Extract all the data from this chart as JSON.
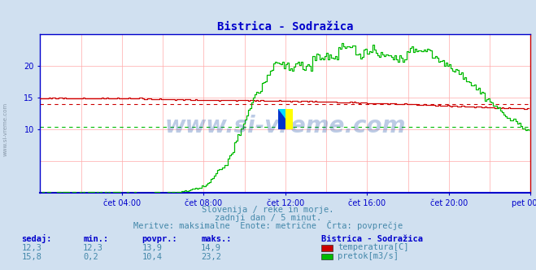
{
  "title": "Bistrica - Sodražica",
  "bg_color": "#d0e0f0",
  "plot_bg_color": "#ffffff",
  "grid_color": "#ffaaaa",
  "x_labels": [
    "čet 04:00",
    "čet 08:00",
    "čet 12:00",
    "čet 16:00",
    "čet 20:00",
    "pet 00:00"
  ],
  "x_ticks": [
    48,
    96,
    144,
    192,
    240,
    288
  ],
  "n_points": 288,
  "y_lim": [
    0,
    25
  ],
  "y_ticks": [
    10,
    15,
    20
  ],
  "temp_color": "#cc0000",
  "flow_color": "#00bb00",
  "temp_avg": 13.9,
  "flow_avg": 10.4,
  "subtitle1": "Slovenija / reke in morje.",
  "subtitle2": "zadnji dan / 5 minut.",
  "subtitle3": "Meritve: maksimalne  Enote: metrične  Črta: povprečje",
  "watermark": "www.si-vreme.com",
  "legend_title": "Bistrica - Sodražica",
  "legend_entries": [
    "temperatura[C]",
    "pretok[m3/s]"
  ],
  "legend_colors": [
    "#cc0000",
    "#00bb00"
  ],
  "table_headers": [
    "sedaj:",
    "min.:",
    "povpr.:",
    "maks.:"
  ],
  "table_row1": [
    "12,3",
    "12,3",
    "13,9",
    "14,9"
  ],
  "table_row2": [
    "15,8",
    "0,2",
    "10,4",
    "23,2"
  ],
  "axis_color": "#0000cc",
  "title_color": "#0000cc",
  "subtitle_color": "#4488aa",
  "table_color": "#4488aa",
  "table_header_color": "#0000cc",
  "sidebar_text": "www.si-vreme.com",
  "sidebar_color": "#8899aa"
}
